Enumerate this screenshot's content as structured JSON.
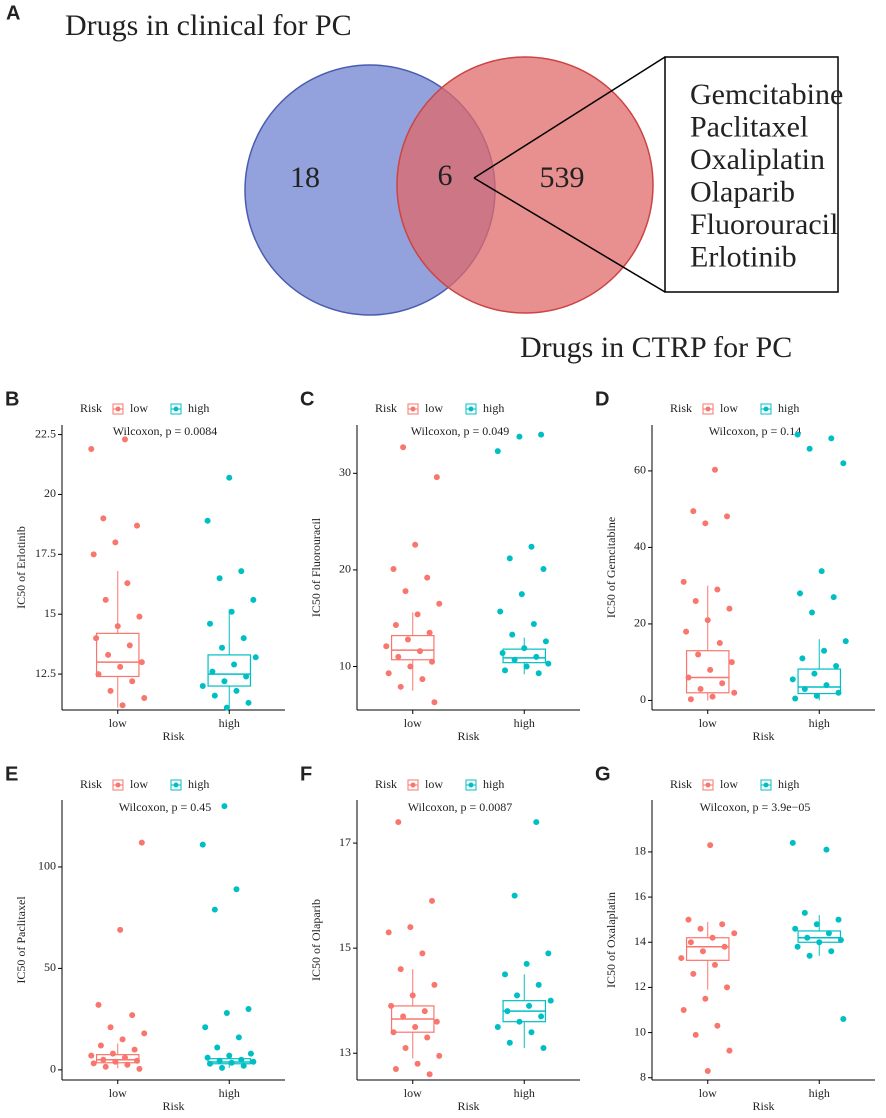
{
  "venn": {
    "panel": "A",
    "left_label": "Drugs in clinical for PC",
    "right_label": "Drugs in CTRP for PC",
    "left_only": 18,
    "both": 6,
    "right_only": 539,
    "shared": [
      "Gemcitabine",
      "Paclitaxel",
      "Oxaliplatin",
      "Olaparib",
      "Fluorouracil",
      "Erlotinib"
    ],
    "left_color": "#6f82d0",
    "right_color": "#e06a6a"
  },
  "chart_data": [
    {
      "type": "box",
      "panel": "B",
      "legend_title": "Risk",
      "annotation": "Wilcoxon, p = 0.0084",
      "xlabel": "Risk",
      "ylabel": "IC50 of Erlotinib",
      "categories": [
        "low",
        "high"
      ],
      "ylim": [
        11.0,
        22.9
      ],
      "yticks": [
        12.5,
        15.0,
        17.5,
        20.0,
        22.5
      ],
      "series": [
        {
          "name": "low",
          "color": "#F8766D",
          "q1": 12.4,
          "median": 13.0,
          "q3": 14.2,
          "whisker_low": 11.1,
          "whisker_high": 16.8,
          "values": [
            21.9,
            22.3,
            19.0,
            18.7,
            18.0,
            17.5,
            16.3,
            15.6,
            14.9,
            14.5,
            14.0,
            13.7,
            13.3,
            13.0,
            12.8,
            12.5,
            12.2,
            11.8,
            11.5,
            11.2
          ]
        },
        {
          "name": "high",
          "color": "#00BFC4",
          "q1": 12.0,
          "median": 12.5,
          "q3": 13.3,
          "whisker_low": 11.1,
          "whisker_high": 15.2,
          "values": [
            20.7,
            18.9,
            16.8,
            16.5,
            15.6,
            15.1,
            14.6,
            14.0,
            13.6,
            13.2,
            12.9,
            12.6,
            12.4,
            12.2,
            12.0,
            11.8,
            11.6,
            11.3,
            11.1
          ]
        }
      ]
    },
    {
      "type": "box",
      "panel": "C",
      "legend_title": "Risk",
      "annotation": "Wilcoxon, p = 0.049",
      "xlabel": "Risk",
      "ylabel": "IC50 of Fluorouracil",
      "categories": [
        "low",
        "high"
      ],
      "ylim": [
        5.5,
        35
      ],
      "yticks": [
        10,
        20,
        30
      ],
      "series": [
        {
          "name": "low",
          "color": "#F8766D",
          "q1": 10.7,
          "median": 11.7,
          "q3": 13.2,
          "whisker_low": 7.5,
          "whisker_high": 15.6,
          "values": [
            32.7,
            29.6,
            22.6,
            20.1,
            19.2,
            17.8,
            16.5,
            15.4,
            14.3,
            13.5,
            12.8,
            12.1,
            11.6,
            11.0,
            10.5,
            10.0,
            9.3,
            8.7,
            7.9,
            6.3
          ]
        },
        {
          "name": "high",
          "color": "#00BFC4",
          "q1": 10.4,
          "median": 10.9,
          "q3": 11.8,
          "whisker_low": 9.2,
          "whisker_high": 13.0,
          "values": [
            34.0,
            33.8,
            32.3,
            22.4,
            21.2,
            20.1,
            17.5,
            15.7,
            14.4,
            13.3,
            12.6,
            11.9,
            11.4,
            11.0,
            10.7,
            10.3,
            10.0,
            9.6,
            9.3
          ]
        }
      ]
    },
    {
      "type": "box",
      "panel": "D",
      "legend_title": "Risk",
      "annotation": "Wilcoxon, p = 0.14",
      "xlabel": "Risk",
      "ylabel": "IC50 of Gemcitabine",
      "categories": [
        "low",
        "high"
      ],
      "ylim": [
        -2.5,
        72
      ],
      "yticks": [
        0,
        20,
        40,
        60
      ],
      "series": [
        {
          "name": "low",
          "color": "#F8766D",
          "q1": 2.0,
          "median": 6.0,
          "q3": 13.0,
          "whisker_low": 0,
          "whisker_high": 30,
          "values": [
            60.3,
            49.5,
            48.1,
            46.3,
            31.0,
            29.0,
            26.0,
            24.0,
            21.0,
            18.0,
            15.0,
            12.0,
            10.0,
            8.0,
            6.0,
            4.5,
            3.0,
            2.0,
            1.0,
            0.3
          ]
        },
        {
          "name": "high",
          "color": "#00BFC4",
          "q1": 1.8,
          "median": 3.5,
          "q3": 8.2,
          "whisker_low": 0,
          "whisker_high": 16,
          "values": [
            69.5,
            68.5,
            65.8,
            62.0,
            33.8,
            28.0,
            27.0,
            23.0,
            15.5,
            13.0,
            11.0,
            9.0,
            7.0,
            5.5,
            4.0,
            3.0,
            2.0,
            1.2,
            0.5
          ]
        }
      ]
    },
    {
      "type": "box",
      "panel": "E",
      "legend_title": "Risk",
      "annotation": "Wilcoxon, p = 0.45",
      "xlabel": "Risk",
      "ylabel": "IC50 of Paclitaxel",
      "categories": [
        "low",
        "high"
      ],
      "ylim": [
        -5,
        133
      ],
      "yticks": [
        0,
        50,
        100
      ],
      "series": [
        {
          "name": "low",
          "color": "#F8766D",
          "q1": 3.5,
          "median": 5.0,
          "q3": 7.5,
          "whisker_low": 0.8,
          "whisker_high": 13,
          "values": [
            112,
            69,
            32,
            27,
            21,
            18,
            15,
            12,
            10,
            8,
            7,
            6,
            5,
            4.5,
            4,
            3.2,
            2.5,
            1.5,
            0.5
          ]
        },
        {
          "name": "high",
          "color": "#00BFC4",
          "q1": 3.0,
          "median": 3.9,
          "q3": 5.5,
          "whisker_low": 1.0,
          "whisker_high": 8.5,
          "values": [
            130,
            111,
            89,
            79,
            30,
            28,
            21,
            16,
            11,
            8,
            7,
            6,
            5,
            4.5,
            4,
            3.5,
            3,
            2,
            1
          ]
        }
      ]
    },
    {
      "type": "box",
      "panel": "F",
      "legend_title": "Risk",
      "annotation": "Wilcoxon, p = 0.0087",
      "xlabel": "Risk",
      "ylabel": "IC50 of Olaparib",
      "categories": [
        "low",
        "high"
      ],
      "ylim": [
        12.49,
        17.82
      ],
      "yticks": [
        13,
        15,
        17
      ],
      "series": [
        {
          "name": "low",
          "color": "#F8766D",
          "q1": 13.4,
          "median": 13.65,
          "q3": 13.9,
          "whisker_low": 12.9,
          "whisker_high": 14.6,
          "values": [
            17.4,
            15.9,
            15.4,
            15.3,
            14.9,
            14.6,
            14.3,
            14.1,
            13.9,
            13.8,
            13.7,
            13.6,
            13.5,
            13.4,
            13.3,
            13.1,
            12.95,
            12.8,
            12.7,
            12.6
          ]
        },
        {
          "name": "high",
          "color": "#00BFC4",
          "q1": 13.6,
          "median": 13.8,
          "q3": 14.0,
          "whisker_low": 13.1,
          "whisker_high": 14.5,
          "values": [
            17.4,
            16.0,
            14.9,
            14.7,
            14.5,
            14.3,
            14.1,
            14.0,
            13.9,
            13.8,
            13.7,
            13.6,
            13.5,
            13.4,
            13.2,
            13.1
          ]
        }
      ]
    },
    {
      "type": "box",
      "panel": "G",
      "legend_title": "Risk",
      "annotation": "Wilcoxon, p = 3.9e−05",
      "xlabel": "Risk",
      "ylabel": "IC50 of Oxalaplatin",
      "categories": [
        "low",
        "high"
      ],
      "ylim": [
        7.9,
        20.3
      ],
      "yticks": [
        8,
        10,
        12,
        14,
        16,
        18
      ],
      "series": [
        {
          "name": "low",
          "color": "#F8766D",
          "q1": 13.2,
          "median": 13.8,
          "q3": 14.2,
          "whisker_low": 11.9,
          "whisker_high": 14.9,
          "values": [
            18.3,
            15.0,
            14.8,
            14.6,
            14.4,
            14.2,
            14.0,
            13.8,
            13.6,
            13.3,
            13.0,
            12.6,
            12.0,
            11.5,
            11.0,
            10.3,
            9.9,
            9.2,
            8.3
          ]
        },
        {
          "name": "high",
          "color": "#00BFC4",
          "q1": 14.0,
          "median": 14.2,
          "q3": 14.5,
          "whisker_low": 13.4,
          "whisker_high": 15.2,
          "values": [
            18.4,
            18.1,
            15.3,
            15.0,
            14.8,
            14.6,
            14.4,
            14.2,
            14.1,
            14.0,
            13.8,
            13.6,
            13.4,
            10.6
          ]
        }
      ]
    }
  ]
}
